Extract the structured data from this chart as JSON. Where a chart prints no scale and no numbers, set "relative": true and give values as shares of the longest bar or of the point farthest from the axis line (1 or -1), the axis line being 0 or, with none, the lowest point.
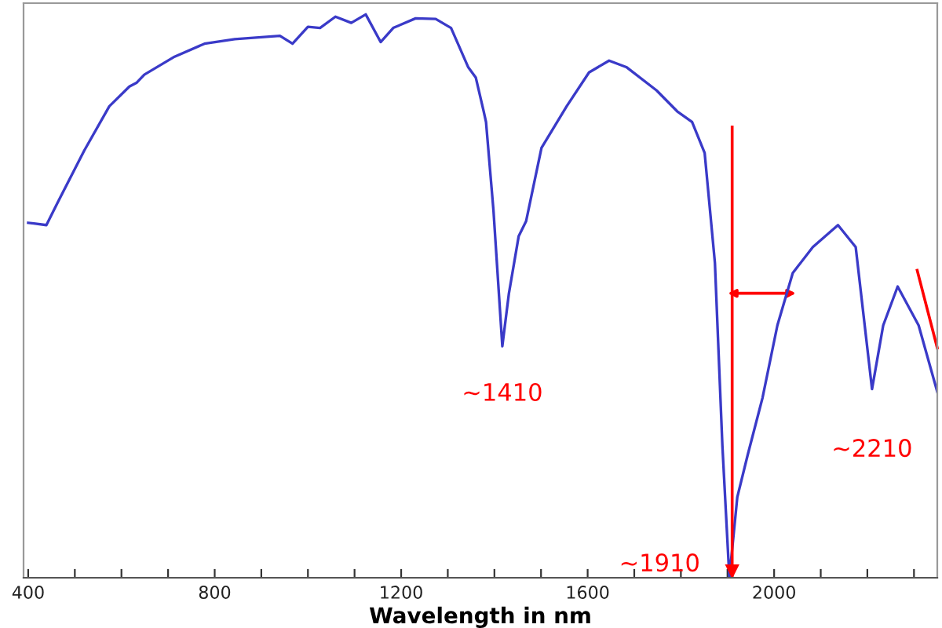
{
  "chart_data": {
    "type": "line",
    "relative": true,
    "xlabel": "Wavelength in nm",
    "x": [
      400,
      412,
      439,
      460,
      520,
      574,
      617,
      633,
      649,
      714,
      778,
      843,
      940,
      967,
      1000,
      1026,
      1059,
      1093,
      1124,
      1156,
      1183,
      1231,
      1274,
      1307,
      1344,
      1360,
      1377,
      1382,
      1398,
      1417,
      1431,
      1452,
      1468,
      1501,
      1555,
      1603,
      1646,
      1684,
      1748,
      1792,
      1824,
      1851,
      1873,
      1889,
      1904,
      1921,
      1943,
      1975,
      2007,
      2040,
      2083,
      2137,
      2175,
      2210,
      2234,
      2265,
      2310,
      2350
    ],
    "series": [
      {
        "color": "#3a3ac8",
        "values": [
          0.63,
          0.629,
          0.626,
          0.661,
          0.758,
          0.837,
          0.872,
          0.879,
          0.893,
          0.925,
          0.948,
          0.956,
          0.962,
          0.948,
          0.978,
          0.976,
          0.996,
          0.985,
          1.0,
          0.951,
          0.976,
          0.993,
          0.992,
          0.976,
          0.906,
          0.888,
          0.828,
          0.809,
          0.652,
          0.411,
          0.504,
          0.606,
          0.633,
          0.763,
          0.837,
          0.897,
          0.918,
          0.906,
          0.865,
          0.828,
          0.809,
          0.754,
          0.559,
          0.235,
          0.0,
          0.143,
          0.217,
          0.319,
          0.448,
          0.541,
          0.587,
          0.626,
          0.587,
          0.335,
          0.448,
          0.517,
          0.448,
          0.33
        ]
      }
    ],
    "xlim": [
      390,
      2350
    ],
    "xticks": [
      400,
      {
        "value": 500,
        "label": null
      },
      {
        "value": 600,
        "label": null
      },
      {
        "value": 700,
        "label": null
      },
      800,
      {
        "value": 900,
        "label": null
      },
      {
        "value": 1000,
        "label": null
      },
      {
        "value": 1100,
        "label": null
      },
      1200,
      {
        "value": 1300,
        "label": null
      },
      {
        "value": 1400,
        "label": null
      },
      {
        "value": 1500,
        "label": null
      },
      1600,
      {
        "value": 1700,
        "label": null
      },
      {
        "value": 1800,
        "label": null
      },
      {
        "value": 1900,
        "label": null
      },
      2000,
      {
        "value": 2100,
        "label": null
      },
      {
        "value": 2200,
        "label": null
      },
      {
        "value": 2300,
        "label": null
      }
    ],
    "annotations": [
      {
        "text": "~1410",
        "x": 1417,
        "y": 0.411
      },
      {
        "text": "~1910",
        "x": 1904,
        "y": 0.0
      },
      {
        "text": "~2210",
        "x": 2210,
        "y": 0.335
      }
    ],
    "ref_lines": [
      {
        "axis": "x",
        "value": 1910,
        "color": "#ff0000"
      }
    ],
    "grid": false,
    "legend": false,
    "marker": "none",
    "line_style": "solid"
  }
}
